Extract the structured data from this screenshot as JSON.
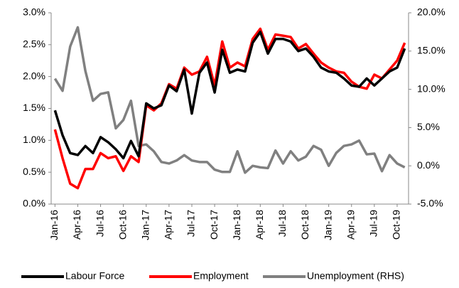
{
  "chart_data": {
    "type": "line",
    "categories": [
      "Jan-16",
      null,
      null,
      "Apr-16",
      null,
      null,
      "Jul-16",
      null,
      null,
      "Oct-16",
      null,
      null,
      "Jan-17",
      null,
      null,
      "Apr-17",
      null,
      null,
      "Jul-17",
      null,
      null,
      "Oct-17",
      null,
      null,
      "Jan-18",
      null,
      null,
      "Apr-18",
      null,
      null,
      "Jul-18",
      null,
      null,
      "Oct-18",
      null,
      null,
      "Jan-19",
      null,
      null,
      "Apr-19",
      null,
      null,
      "Jul-19",
      null,
      null,
      "Oct-19",
      null
    ],
    "series": [
      {
        "name": "Labour Force",
        "color": "#000000",
        "axis": "y",
        "values": [
          1.47,
          1.08,
          0.8,
          0.77,
          0.91,
          0.8,
          1.05,
          0.97,
          0.86,
          0.72,
          0.99,
          0.75,
          1.58,
          1.5,
          1.55,
          1.86,
          1.77,
          2.11,
          1.42,
          2.06,
          2.22,
          1.75,
          2.42,
          2.06,
          2.11,
          2.08,
          2.53,
          2.7,
          2.36,
          2.59,
          2.59,
          2.55,
          2.4,
          2.44,
          2.31,
          2.14,
          2.08,
          2.06,
          1.97,
          1.86,
          1.84,
          1.97,
          1.86,
          1.97,
          2.08,
          2.14,
          2.44
        ]
      },
      {
        "name": "Employment",
        "color": "#ff0000",
        "axis": "y",
        "values": [
          1.17,
          0.72,
          0.32,
          0.25,
          0.55,
          0.55,
          0.8,
          0.72,
          0.75,
          0.52,
          0.75,
          0.66,
          1.55,
          1.47,
          1.58,
          1.88,
          1.81,
          2.14,
          2.03,
          2.08,
          2.31,
          1.86,
          2.55,
          2.14,
          2.22,
          2.16,
          2.59,
          2.75,
          2.42,
          2.66,
          2.64,
          2.62,
          2.44,
          2.51,
          2.36,
          2.22,
          2.14,
          2.08,
          2.06,
          1.92,
          1.84,
          1.81,
          2.03,
          1.97,
          2.11,
          2.25,
          2.53
        ]
      },
      {
        "name": "Unemployment (RHS)",
        "color": "#808080",
        "axis": "y2",
        "values": [
          11.4,
          9.8,
          15.6,
          18.1,
          12.4,
          8.5,
          9.4,
          9.6,
          4.9,
          6.0,
          8.5,
          2.6,
          2.8,
          1.9,
          0.5,
          0.3,
          0.7,
          1.4,
          0.7,
          0.5,
          0.5,
          -0.5,
          -0.8,
          -0.8,
          1.9,
          -0.9,
          0.0,
          -0.2,
          -0.3,
          2.0,
          0.3,
          1.9,
          0.7,
          1.2,
          2.6,
          2.1,
          0.0,
          1.7,
          2.6,
          2.8,
          3.3,
          1.5,
          1.6,
          -0.7,
          1.4,
          0.3,
          -0.2
        ]
      }
    ],
    "ylim": [
      0,
      3
    ],
    "yticks": [
      {
        "value": 0,
        "label": "0.0%"
      },
      {
        "value": 0.5,
        "label": "0.5%"
      },
      {
        "value": 1,
        "label": "1.0%"
      },
      {
        "value": 1.5,
        "label": "1.5%"
      },
      {
        "value": 2,
        "label": "2.0%"
      },
      {
        "value": 2.5,
        "label": "2.5%"
      },
      {
        "value": 3,
        "label": "3.0%"
      }
    ],
    "y2lim": [
      -5,
      20
    ],
    "y2ticks": [
      {
        "value": -5,
        "label": "-5.0%"
      },
      {
        "value": 0,
        "label": "0.0%"
      },
      {
        "value": 5,
        "label": "5.0%"
      },
      {
        "value": 10,
        "label": "10.0%"
      },
      {
        "value": 15,
        "label": "15.0%"
      },
      {
        "value": 20,
        "label": "20.0%"
      }
    ],
    "grid": false,
    "legend": "bottom"
  }
}
